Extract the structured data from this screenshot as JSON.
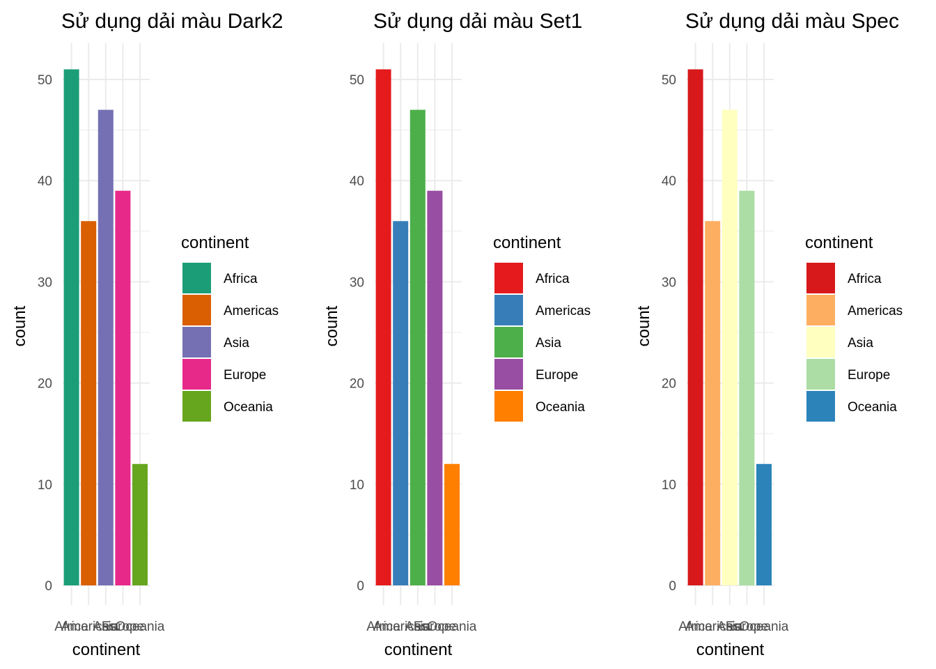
{
  "chart_data": [
    {
      "type": "bar",
      "title": "Sử dụng dải màu Dark2",
      "xlabel": "continent",
      "ylabel": "count",
      "categories": [
        "Africa",
        "Americas",
        "Asia",
        "Europe",
        "Oceania"
      ],
      "values": [
        51,
        36,
        47,
        39,
        12
      ],
      "colors": [
        "#1B9E77",
        "#D95F02",
        "#7570B3",
        "#E7298A",
        "#66A61E"
      ],
      "ylim": [
        0,
        53.5
      ],
      "yticks": [
        0,
        10,
        20,
        30,
        40,
        50
      ],
      "grid": true,
      "legend": {
        "title": "continent",
        "position": "right",
        "entries": [
          "Africa",
          "Americas",
          "Asia",
          "Europe",
          "Oceania"
        ]
      }
    },
    {
      "type": "bar",
      "title": "Sử dụng dải màu Set1",
      "xlabel": "continent",
      "ylabel": "count",
      "categories": [
        "Africa",
        "Americas",
        "Asia",
        "Europe",
        "Oceania"
      ],
      "values": [
        51,
        36,
        47,
        39,
        12
      ],
      "colors": [
        "#E41A1C",
        "#377EB8",
        "#4DAF4A",
        "#984EA3",
        "#FF7F00"
      ],
      "ylim": [
        0,
        53.5
      ],
      "yticks": [
        0,
        10,
        20,
        30,
        40,
        50
      ],
      "grid": true,
      "legend": {
        "title": "continent",
        "position": "right",
        "entries": [
          "Africa",
          "Americas",
          "Asia",
          "Europe",
          "Oceania"
        ]
      }
    },
    {
      "type": "bar",
      "title": "Sử dụng dải màu Spec",
      "xlabel": "continent",
      "ylabel": "count",
      "categories": [
        "Africa",
        "Americas",
        "Asia",
        "Europe",
        "Oceania"
      ],
      "values": [
        51,
        36,
        47,
        39,
        12
      ],
      "colors": [
        "#D7191C",
        "#FDAE61",
        "#FFFFBF",
        "#ABDDA4",
        "#2B83BA"
      ],
      "ylim": [
        0,
        53.5
      ],
      "yticks": [
        0,
        10,
        20,
        30,
        40,
        50
      ],
      "grid": true,
      "legend": {
        "title": "continent",
        "position": "right",
        "entries": [
          "Africa",
          "Americas",
          "Asia",
          "Europe",
          "Oceania"
        ]
      }
    }
  ]
}
